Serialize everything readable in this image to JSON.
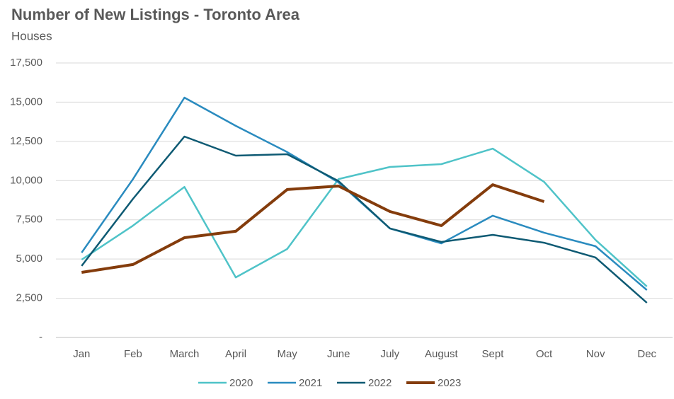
{
  "chart_data": {
    "type": "line",
    "title": "Number of New Listings - Toronto Area",
    "subtitle": "Houses",
    "categories": [
      "Jan",
      "Feb",
      "March",
      "April",
      "May",
      "June",
      "July",
      "August",
      "Sept",
      "Oct",
      "Nov",
      "Dec"
    ],
    "series": [
      {
        "name": "2020",
        "color": "#4fc3c8",
        "values": [
          4960,
          7130,
          9600,
          3830,
          5640,
          10100,
          10870,
          11050,
          12040,
          9920,
          6220,
          3250
        ]
      },
      {
        "name": "2021",
        "color": "#2a8bbf",
        "values": [
          5410,
          10100,
          15290,
          13490,
          11820,
          9880,
          6950,
          6000,
          7760,
          6680,
          5820,
          3020
        ]
      },
      {
        "name": "2022",
        "color": "#0e5a73",
        "values": [
          4560,
          8840,
          12810,
          11590,
          11680,
          9970,
          6950,
          6090,
          6540,
          6040,
          5100,
          2210
        ]
      },
      {
        "name": "2023",
        "color": "#843c0c",
        "values": [
          4150,
          4650,
          6360,
          6770,
          9430,
          9650,
          8030,
          7130,
          9740,
          8660,
          null,
          null
        ]
      }
    ],
    "ylim": [
      0,
      17500
    ],
    "yticks": [
      {
        "value": 0,
        "label": "-"
      },
      {
        "value": 2500,
        "label": "2,500"
      },
      {
        "value": 5000,
        "label": "5,000"
      },
      {
        "value": 7500,
        "label": "7,500"
      },
      {
        "value": 10000,
        "label": "10,000"
      },
      {
        "value": 12500,
        "label": "12,500"
      },
      {
        "value": 15000,
        "label": "15,000"
      },
      {
        "value": 17500,
        "label": "17,500"
      }
    ],
    "grid": true,
    "legend": "bottom"
  }
}
